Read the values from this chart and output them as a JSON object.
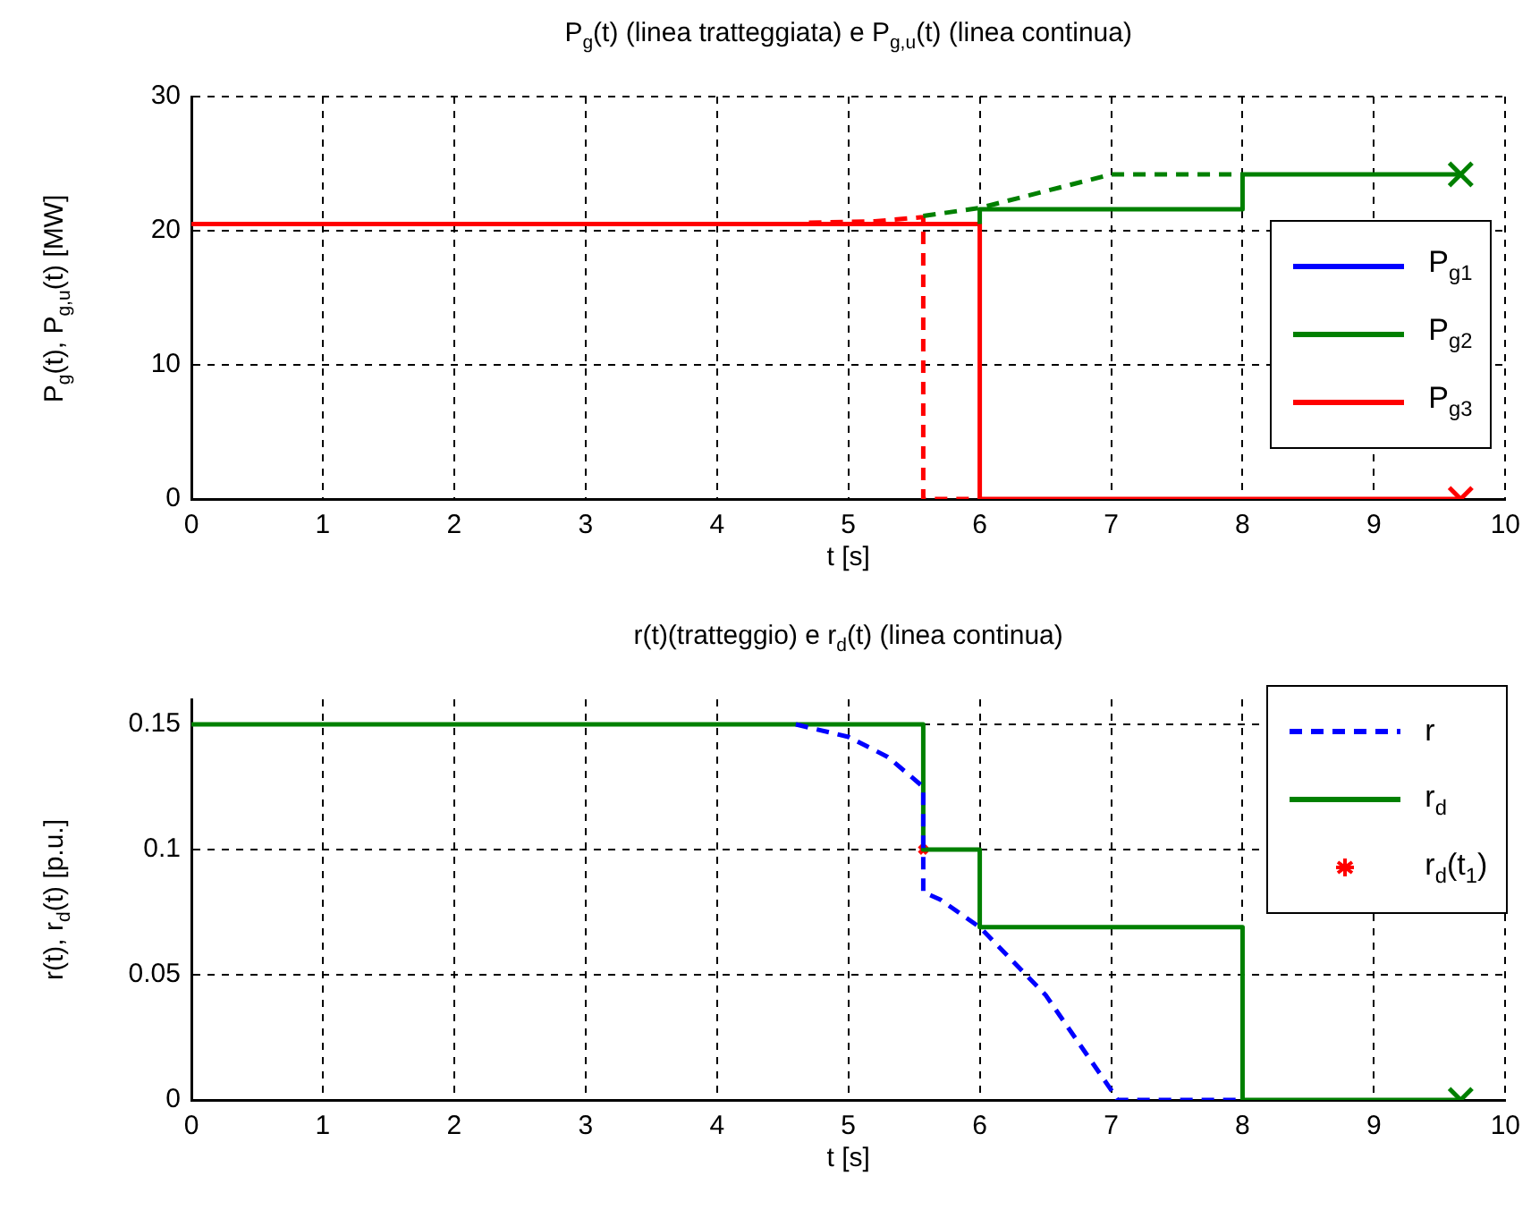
{
  "chart_data": [
    {
      "type": "line",
      "title": "P$_{g}$(t) (linea tratteggiata) e P$_{g,u}$(t) (linea continua)",
      "xlabel": "t [s]",
      "ylabel": "P$_{g}$(t), P$_{g,u}$(t) [MW]",
      "xlim": [
        0,
        10
      ],
      "ylim": [
        0,
        30
      ],
      "xticks": [
        0,
        1,
        2,
        3,
        4,
        5,
        6,
        7,
        8,
        9,
        10
      ],
      "yticks": [
        0,
        10,
        20,
        30
      ],
      "grid": true,
      "legend": "right",
      "series": [
        {
          "name": "P$_{g1}$",
          "color": "#0000ff",
          "line_style": "solid"
        },
        {
          "name": "P$_{g2}$",
          "color": "#008000",
          "line_style": "solid",
          "x": [
            6,
            6,
            8,
            8,
            9.66
          ],
          "values": [
            20.5,
            21.6,
            21.6,
            24.2,
            24.2
          ]
        },
        {
          "name": "P$_{g3}$",
          "color": "#ff0000",
          "line_style": "solid",
          "x": [
            0,
            6,
            6,
            9.66
          ],
          "values": [
            20.5,
            20.5,
            0,
            0
          ]
        },
        {
          "color": "#008000",
          "line_style": "dashed",
          "x": [
            5.57,
            6,
            7,
            8
          ],
          "values": [
            21.1,
            21.7,
            24.2,
            24.2
          ]
        },
        {
          "color": "#ff0000",
          "line_style": "dashed",
          "x": [
            4.7,
            5.2,
            5.55,
            5.57,
            5.57,
            6
          ],
          "values": [
            20.6,
            20.7,
            21,
            21,
            0,
            0
          ]
        },
        {
          "color": "#008000",
          "marker": "cross",
          "x": [
            9.66
          ],
          "values": [
            24.2
          ]
        },
        {
          "color": "#ff0000",
          "marker": "cross",
          "x": [
            9.66
          ],
          "values": [
            0
          ]
        }
      ]
    },
    {
      "type": "line",
      "title": "r(t)(tratteggio) e r$_{d}$(t) (linea continua)",
      "xlabel": "t [s]",
      "ylabel": "r(t), r$_{d}$(t) [p.u.]",
      "xlim": [
        0,
        10
      ],
      "ylim": [
        0,
        0.16
      ],
      "xticks": [
        0,
        1,
        2,
        3,
        4,
        5,
        6,
        7,
        8,
        9,
        10
      ],
      "yticks": [
        0,
        0.05,
        0.1,
        0.15
      ],
      "grid": true,
      "legend": "top right",
      "series": [
        {
          "name": "r",
          "color": "#0000ff",
          "line_style": "dashed",
          "x": [
            4.6,
            5,
            5.3,
            5.57,
            5.57,
            5.7,
            6,
            6.5,
            7,
            7.05,
            7.95
          ],
          "values": [
            0.15,
            0.145,
            0.137,
            0.125,
            0.083,
            0.08,
            0.069,
            0.042,
            0.004,
            0,
            0
          ]
        },
        {
          "name": "r$_{d}$",
          "color": "#008000",
          "line_style": "solid",
          "x": [
            0,
            5.57,
            5.57,
            6,
            6,
            8,
            8,
            9.66
          ],
          "values": [
            0.15,
            0.15,
            0.1,
            0.1,
            0.069,
            0.069,
            0,
            0
          ]
        },
        {
          "name": "r$_{d}$(t$_{1}$)",
          "type": "scatter",
          "color": "#ff0000",
          "marker": "cross",
          "x": [
            5.57
          ],
          "values": [
            0.1
          ]
        },
        {
          "color": "#008000",
          "marker": "cross",
          "x": [
            9.66
          ],
          "values": [
            0
          ]
        }
      ]
    }
  ]
}
